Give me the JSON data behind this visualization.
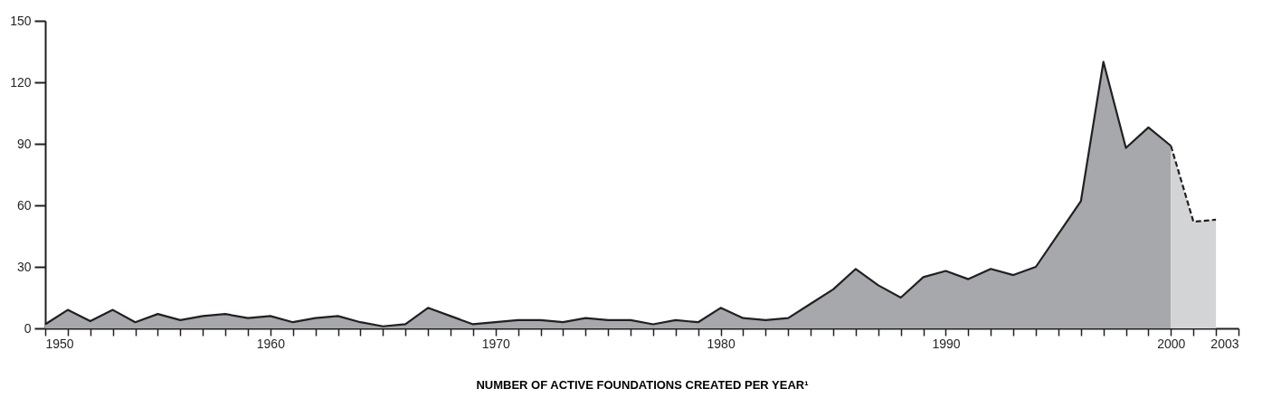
{
  "chart_data": {
    "type": "area",
    "xlabel": "NUMBER OF ACTIVE FOUNDATIONS CREATED PER YEAR¹",
    "series": [
      {
        "color": "#a7a8ab",
        "line_style": "solid",
        "x": [
          1950,
          1951,
          1952,
          1953,
          1954,
          1955,
          1956,
          1957,
          1958,
          1959,
          1960,
          1961,
          1962,
          1963,
          1964,
          1965,
          1966,
          1967,
          1968,
          1969,
          1970,
          1971,
          1972,
          1973,
          1974,
          1975,
          1976,
          1977,
          1978,
          1979,
          1980,
          1981,
          1982,
          1983,
          1984,
          1985,
          1986,
          1987,
          1988,
          1989,
          1990,
          1991,
          1992,
          1993,
          1994,
          1995,
          1996,
          1997,
          1998,
          1999,
          2000
        ],
        "values": [
          2,
          9,
          3.5,
          9,
          3,
          7,
          4,
          6,
          7,
          5,
          6,
          3,
          5,
          6,
          3,
          1,
          2,
          10,
          6,
          2,
          3,
          4,
          4,
          3,
          5,
          4,
          4,
          2,
          4,
          3,
          10,
          5,
          4,
          5,
          12,
          19,
          29,
          21,
          15,
          25,
          28,
          24,
          29,
          26,
          30,
          46,
          62,
          130,
          88,
          98,
          89
        ]
      },
      {
        "color": "#d3d4d6",
        "line_style": "dashed",
        "x": [
          2000,
          2001,
          2002
        ],
        "values": [
          89,
          52,
          53
        ]
      }
    ],
    "xlim": [
      1950,
      2003
    ],
    "xticks": [
      1950,
      {
        "value": 1951,
        "label": null
      },
      {
        "value": 1952,
        "label": null
      },
      {
        "value": 1953,
        "label": null
      },
      {
        "value": 1954,
        "label": null
      },
      {
        "value": 1955,
        "label": null
      },
      {
        "value": 1956,
        "label": null
      },
      {
        "value": 1957,
        "label": null
      },
      {
        "value": 1958,
        "label": null
      },
      {
        "value": 1959,
        "label": null
      },
      1960,
      {
        "value": 1961,
        "label": null
      },
      {
        "value": 1962,
        "label": null
      },
      {
        "value": 1963,
        "label": null
      },
      {
        "value": 1964,
        "label": null
      },
      {
        "value": 1965,
        "label": null
      },
      {
        "value": 1966,
        "label": null
      },
      {
        "value": 1967,
        "label": null
      },
      {
        "value": 1968,
        "label": null
      },
      {
        "value": 1969,
        "label": null
      },
      1970,
      {
        "value": 1971,
        "label": null
      },
      {
        "value": 1972,
        "label": null
      },
      {
        "value": 1973,
        "label": null
      },
      {
        "value": 1974,
        "label": null
      },
      {
        "value": 1975,
        "label": null
      },
      {
        "value": 1976,
        "label": null
      },
      {
        "value": 1977,
        "label": null
      },
      {
        "value": 1978,
        "label": null
      },
      {
        "value": 1979,
        "label": null
      },
      1980,
      {
        "value": 1981,
        "label": null
      },
      {
        "value": 1982,
        "label": null
      },
      {
        "value": 1983,
        "label": null
      },
      {
        "value": 1984,
        "label": null
      },
      {
        "value": 1985,
        "label": null
      },
      {
        "value": 1986,
        "label": null
      },
      {
        "value": 1987,
        "label": null
      },
      {
        "value": 1988,
        "label": null
      },
      {
        "value": 1989,
        "label": null
      },
      1990,
      {
        "value": 1991,
        "label": null
      },
      {
        "value": 1992,
        "label": null
      },
      {
        "value": 1993,
        "label": null
      },
      {
        "value": 1994,
        "label": null
      },
      {
        "value": 1995,
        "label": null
      },
      {
        "value": 1996,
        "label": null
      },
      {
        "value": 1997,
        "label": null
      },
      {
        "value": 1998,
        "label": null
      },
      {
        "value": 1999,
        "label": null
      },
      2000,
      {
        "value": 2001,
        "label": null
      },
      {
        "value": 2002,
        "label": null
      },
      2003
    ],
    "ylim": [
      0,
      150
    ],
    "yticks": [
      0,
      30,
      60,
      90,
      120,
      150
    ],
    "grid": false
  }
}
